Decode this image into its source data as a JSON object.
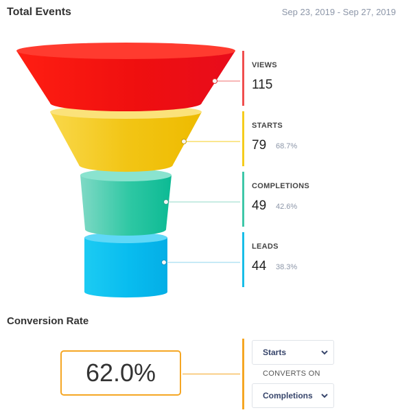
{
  "header": {
    "title": "Total Events",
    "date_range": "Sep 23, 2019 - Sep 27, 2019"
  },
  "funnel": {
    "stages": [
      {
        "name": "VIEWS",
        "value": "115",
        "percent": "",
        "color": "#f04e4e"
      },
      {
        "name": "STARTS",
        "value": "79",
        "percent": "68.7%",
        "color": "#f5cc1c"
      },
      {
        "name": "COMPLETIONS",
        "value": "49",
        "percent": "42.6%",
        "color": "#3ec7a8"
      },
      {
        "name": "LEADS",
        "value": "44",
        "percent": "38.3%",
        "color": "#18bde8"
      }
    ]
  },
  "conversion": {
    "title": "Conversion Rate",
    "rate": "62.0%",
    "from_select": "Starts",
    "converts_label": "CONVERTS ON",
    "to_select": "Completions",
    "accent": "#f5a623"
  }
}
